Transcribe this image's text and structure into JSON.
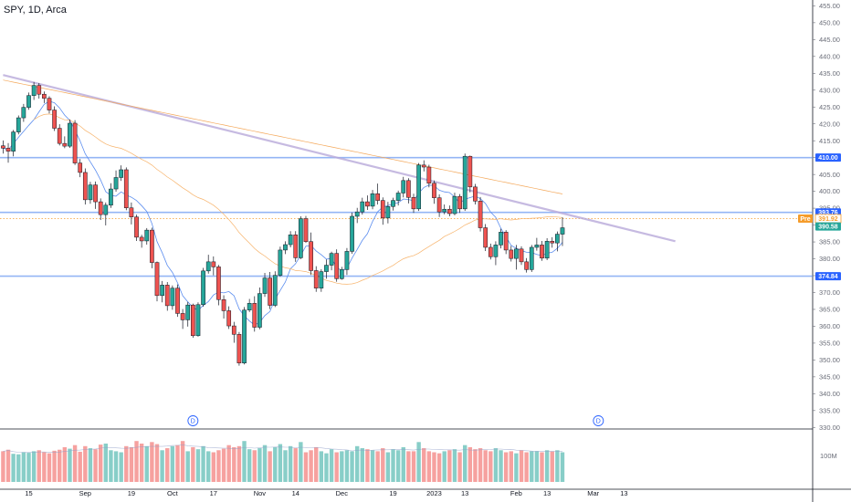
{
  "header": {
    "ticker_label": "SPY, 1D, Arca"
  },
  "chart_data": {
    "type": "candlestick",
    "y_axis": {
      "range": [
        330,
        457
      ],
      "ticks": [
        "455.00",
        "450.00",
        "445.00",
        "440.00",
        "435.00",
        "430.00",
        "425.00",
        "420.00",
        "415.00",
        "410.00",
        "405.00",
        "400.00",
        "395.00",
        "390.00",
        "385.00",
        "380.00",
        "375.00",
        "370.00",
        "365.00",
        "360.00",
        "355.00",
        "350.00",
        "345.00",
        "340.00",
        "335.00",
        "330.00"
      ],
      "tick_values": [
        455,
        450,
        445,
        440,
        435,
        430,
        425,
        420,
        415,
        410,
        405,
        400,
        395,
        390,
        385,
        380,
        375,
        370,
        365,
        360,
        355,
        350,
        345,
        340,
        335,
        330
      ]
    },
    "x_axis": {
      "ticks": [
        {
          "label": "15",
          "index": 5
        },
        {
          "label": "Sep",
          "index": 16
        },
        {
          "label": "19",
          "index": 25
        },
        {
          "label": "Oct",
          "index": 33
        },
        {
          "label": "17",
          "index": 41
        },
        {
          "label": "Nov",
          "index": 50
        },
        {
          "label": "14",
          "index": 57
        },
        {
          "label": "Dec",
          "index": 66
        },
        {
          "label": "19",
          "index": 76
        },
        {
          "label": "2023",
          "index": 84
        },
        {
          "label": "13",
          "index": 90
        },
        {
          "label": "Feb",
          "index": 100
        },
        {
          "label": "13",
          "index": 106
        },
        {
          "label": "Mar",
          "index": 115
        },
        {
          "label": "13",
          "index": 121
        }
      ]
    },
    "candles": [
      [
        413.5,
        412.8,
        415.1,
        411.2
      ],
      [
        412.8,
        411.9,
        414.3,
        408.5
      ],
      [
        411.9,
        417.6,
        418.2,
        410.4
      ],
      [
        417.6,
        421.8,
        422.5,
        416.9
      ],
      [
        421.8,
        424.9,
        425.9,
        420.6
      ],
      [
        424.9,
        428.4,
        429.3,
        424.2
      ],
      [
        428.4,
        431.4,
        432.4,
        427.1
      ],
      [
        431.4,
        428.8,
        432.1,
        427.5
      ],
      [
        428.8,
        427.6,
        429.6,
        426.2
      ],
      [
        427.6,
        424.1,
        428.2,
        423.1
      ],
      [
        424.1,
        418.7,
        425.2,
        417.9
      ],
      [
        418.7,
        414.2,
        419.9,
        413.6
      ],
      [
        414.2,
        413.4,
        416.3,
        412.8
      ],
      [
        413.4,
        420.2,
        421.3,
        412.9
      ],
      [
        420.2,
        408.4,
        421.1,
        407.8
      ],
      [
        408.4,
        405.6,
        409.6,
        404.2
      ],
      [
        405.6,
        397.5,
        406.8,
        396.1
      ],
      [
        397.5,
        401.9,
        402.8,
        396.3
      ],
      [
        401.9,
        396.9,
        402.9,
        394.8
      ],
      [
        396.9,
        393.1,
        397.9,
        391.5
      ],
      [
        393.1,
        395.9,
        396.7,
        389.9
      ],
      [
        395.9,
        400.7,
        402.4,
        395.1
      ],
      [
        400.7,
        404.1,
        406.2,
        399.9
      ],
      [
        404.1,
        406.4,
        407.7,
        403.1
      ],
      [
        406.4,
        395.1,
        407.1,
        394.4
      ],
      [
        395.1,
        392.4,
        396.7,
        390.2
      ],
      [
        392.4,
        386.4,
        393.1,
        385.3
      ],
      [
        386.4,
        385.3,
        387.1,
        383.3
      ],
      [
        385.3,
        388.5,
        389.1,
        384.2
      ],
      [
        388.5,
        378.9,
        389.2,
        377.2
      ],
      [
        378.9,
        369.1,
        379.2,
        367.4
      ],
      [
        369.1,
        372.2,
        373.4,
        367.1
      ],
      [
        372.2,
        366.1,
        373.1,
        364.6
      ],
      [
        366.1,
        371.3,
        372.1,
        364.9
      ],
      [
        371.3,
        363.8,
        372.4,
        362.8
      ],
      [
        363.8,
        361.9,
        365.1,
        359.2
      ],
      [
        361.9,
        366.3,
        367.2,
        359.9
      ],
      [
        366.3,
        357.2,
        366.7,
        356.6
      ],
      [
        357.2,
        366.4,
        367.1,
        356.9
      ],
      [
        366.4,
        376.4,
        377.3,
        365.8
      ],
      [
        376.4,
        379.1,
        381.2,
        375.6
      ],
      [
        379.1,
        377.6,
        380.7,
        375.1
      ],
      [
        377.6,
        367.9,
        378.2,
        366.2
      ],
      [
        367.9,
        364.6,
        369.2,
        362.3
      ],
      [
        364.6,
        360.1,
        365.9,
        359.2
      ],
      [
        360.1,
        357.6,
        361.3,
        355.1
      ],
      [
        357.6,
        349.1,
        358.3,
        348.3
      ],
      [
        349.1,
        364.8,
        365.7,
        348.7
      ],
      [
        364.8,
        366.8,
        368.1,
        364.2
      ],
      [
        366.8,
        359.7,
        368.9,
        358.4
      ],
      [
        359.7,
        369.7,
        371.5,
        359.1
      ],
      [
        369.7,
        374.3,
        375.8,
        368.7
      ],
      [
        374.3,
        366.2,
        376.1,
        365.1
      ],
      [
        366.2,
        375.1,
        376.3,
        365.7
      ],
      [
        375.1,
        382.6,
        383.6,
        374.7
      ],
      [
        382.6,
        384.2,
        385.2,
        381.4
      ],
      [
        384.2,
        387.1,
        388.2,
        383.4
      ],
      [
        387.1,
        380.3,
        388.2,
        379.1
      ],
      [
        380.3,
        391.9,
        392.6,
        379.9
      ],
      [
        391.9,
        385.1,
        392.7,
        384.7
      ],
      [
        385.1,
        376.5,
        387.8,
        375.2
      ],
      [
        376.5,
        371.3,
        377.8,
        370.2
      ],
      [
        371.3,
        376.2,
        376.9,
        370.2
      ],
      [
        376.2,
        378.1,
        379.8,
        374.1
      ],
      [
        378.1,
        381.6,
        382.1,
        376.6
      ],
      [
        381.6,
        374.1,
        382.8,
        373.2
      ],
      [
        374.1,
        376.8,
        377.6,
        373.8
      ],
      [
        376.8,
        382.2,
        383.2,
        375.2
      ],
      [
        382.2,
        392.6,
        393.7,
        381.5
      ],
      [
        392.6,
        393.9,
        395.1,
        390.6
      ],
      [
        393.9,
        396.9,
        398.1,
        393.1
      ],
      [
        396.9,
        395.6,
        398.8,
        394.5
      ],
      [
        395.6,
        399.3,
        400.4,
        394.7
      ],
      [
        399.3,
        397.3,
        402.3,
        396.1
      ],
      [
        397.3,
        392.1,
        398.2,
        390.1
      ],
      [
        392.1,
        395.5,
        396.9,
        390.5
      ],
      [
        395.5,
        397.3,
        398.1,
        394.3
      ],
      [
        397.3,
        399.5,
        400.2,
        395.8
      ],
      [
        399.5,
        403.2,
        404.3,
        398.2
      ],
      [
        403.2,
        398.2,
        403.9,
        396.4
      ],
      [
        398.2,
        394.8,
        399.3,
        393.6
      ],
      [
        394.8,
        407.8,
        408.4,
        394.2
      ],
      [
        407.8,
        407.2,
        409.2,
        405.9
      ],
      [
        407.2,
        402.4,
        407.9,
        401.2
      ],
      [
        402.4,
        398.1,
        403.2,
        396.3
      ],
      [
        398.1,
        393.9,
        399.1,
        392.4
      ],
      [
        393.9,
        394.7,
        396.1,
        393.2
      ],
      [
        394.7,
        393.4,
        395.8,
        392.6
      ],
      [
        393.4,
        398.5,
        399.6,
        392.9
      ],
      [
        398.5,
        394.8,
        399.2,
        393.6
      ],
      [
        394.8,
        410.4,
        411.2,
        394.2
      ],
      [
        410.4,
        401.3,
        410.6,
        399.7
      ],
      [
        401.3,
        397.1,
        402.2,
        396.1
      ],
      [
        397.1,
        389.2,
        398.3,
        388.1
      ],
      [
        389.2,
        383.4,
        390.3,
        382.3
      ],
      [
        383.4,
        380.6,
        384.5,
        379.8
      ],
      [
        380.6,
        384.1,
        385.2,
        378.1
      ],
      [
        384.1,
        387.9,
        388.9,
        383.1
      ],
      [
        387.9,
        382.6,
        388.5,
        381.4
      ],
      [
        382.6,
        380.1,
        383.8,
        379.2
      ],
      [
        380.1,
        382.9,
        384.1,
        376.8
      ],
      [
        382.9,
        379.1,
        383.7,
        378.2
      ],
      [
        379.1,
        376.8,
        380.2,
        375.9
      ],
      [
        376.8,
        383.4,
        384.1,
        376.1
      ],
      [
        383.4,
        384.1,
        386.2,
        382.4
      ],
      [
        384.1,
        380.2,
        385.3,
        379.4
      ],
      [
        380.2,
        385.2,
        386.1,
        379.6
      ],
      [
        385.2,
        384.7,
        386.4,
        383.3
      ],
      [
        384.7,
        387.3,
        388.1,
        382.2
      ],
      [
        387.3,
        389.2,
        392.3,
        383.8
      ]
    ],
    "moving_averages": [
      {
        "name": "MA 20",
        "color": "#5b8def"
      },
      {
        "name": "MA 50",
        "color": "#f7b36b"
      },
      {
        "name": "MA 200",
        "color": "#f4a95c"
      }
    ],
    "horizontal_levels": [
      {
        "value": 410.0,
        "label": "410.00",
        "color": "#5b8def"
      },
      {
        "value": 393.76,
        "label": "393.76",
        "color": "#5b8def"
      },
      {
        "value": 374.84,
        "label": "374.84",
        "color": "#5b8def"
      }
    ],
    "trendline": {
      "start": [
        0,
        434.5
      ],
      "end": [
        131,
        385.2
      ],
      "color": "#b8a9d9"
    },
    "price_labels": [
      {
        "value": 391.92,
        "label": "391.92",
        "tag": "Pre",
        "color": "#f59c2b"
      },
      {
        "value": 390.58,
        "label": "390.58",
        "color": "#26a69a"
      }
    ],
    "volume_axis_label": "100M",
    "volume": [
      60,
      63,
      55,
      54,
      58,
      57,
      60,
      62,
      58,
      56,
      61,
      63,
      68,
      65,
      72,
      59,
      70,
      66,
      64,
      73,
      75,
      62,
      60,
      58,
      70,
      68,
      80,
      75,
      70,
      78,
      74,
      62,
      66,
      70,
      72,
      80,
      60,
      68,
      64,
      70,
      60,
      58,
      62,
      65,
      72,
      68,
      70,
      80,
      64,
      62,
      66,
      72,
      60,
      68,
      74,
      62,
      70,
      66,
      78,
      58,
      62,
      68,
      60,
      56,
      64,
      58,
      60,
      62,
      60,
      70,
      66,
      64,
      62,
      60,
      66,
      58,
      64,
      62,
      68,
      60,
      60,
      78,
      66,
      60,
      58,
      56,
      60,
      62,
      64,
      58,
      72,
      68,
      64,
      66,
      62,
      60,
      66,
      62,
      58,
      60,
      56,
      62,
      58,
      60,
      60,
      58,
      62,
      60,
      62,
      58
    ],
    "dividend_markers": [
      {
        "label": "D",
        "index": 37
      },
      {
        "label": "D",
        "index": 116
      }
    ]
  },
  "colors": {
    "up": "#26a69a",
    "down": "#ef5350",
    "axis": "#131722",
    "grid": "#e0e3eb"
  }
}
